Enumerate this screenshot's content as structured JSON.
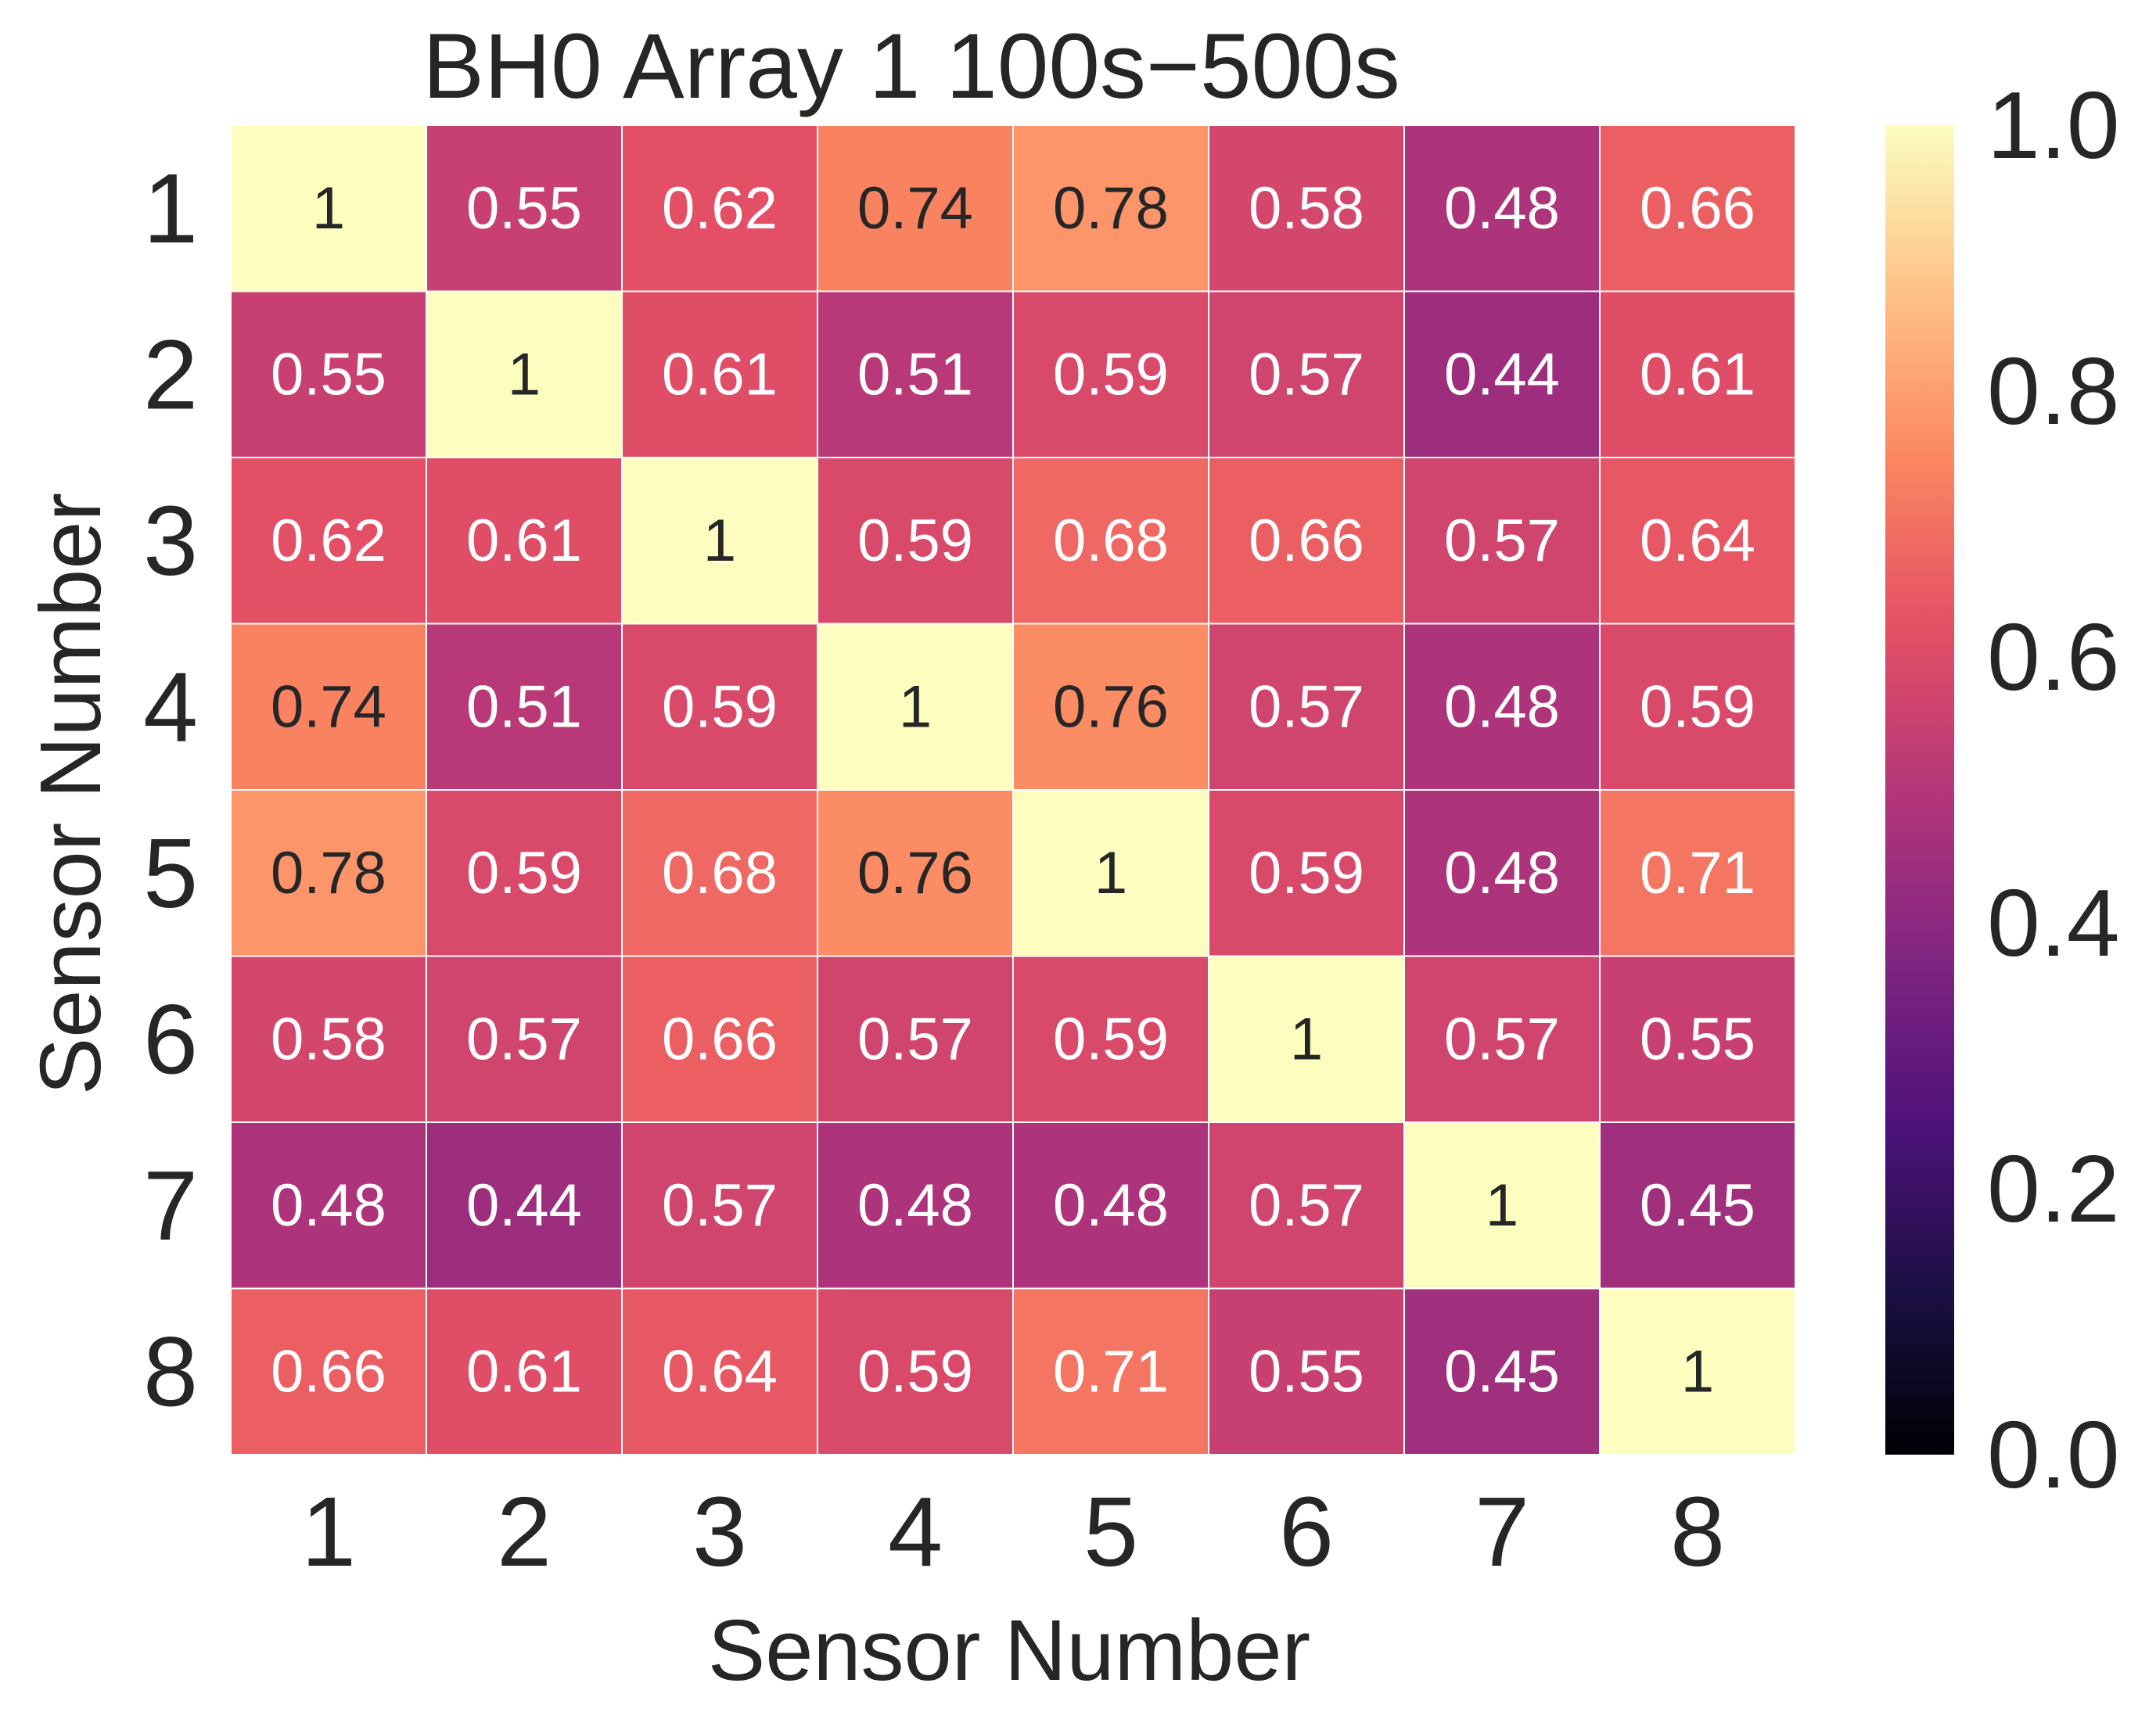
{
  "chart_data": {
    "type": "heatmap",
    "title": "BH0 Array 1 100s−500s",
    "xlabel": "Sensor Number",
    "ylabel": "Sensor Number",
    "x_categories": [
      "1",
      "2",
      "3",
      "4",
      "5",
      "6",
      "7",
      "8"
    ],
    "y_categories": [
      "1",
      "2",
      "3",
      "4",
      "5",
      "6",
      "7",
      "8"
    ],
    "values": [
      [
        1.0,
        0.55,
        0.62,
        0.74,
        0.78,
        0.58,
        0.48,
        0.66
      ],
      [
        0.55,
        1.0,
        0.61,
        0.51,
        0.59,
        0.57,
        0.44,
        0.61
      ],
      [
        0.62,
        0.61,
        1.0,
        0.59,
        0.68,
        0.66,
        0.57,
        0.64
      ],
      [
        0.74,
        0.51,
        0.59,
        1.0,
        0.76,
        0.57,
        0.48,
        0.59
      ],
      [
        0.78,
        0.59,
        0.68,
        0.76,
        1.0,
        0.59,
        0.48,
        0.71
      ],
      [
        0.58,
        0.57,
        0.66,
        0.57,
        0.59,
        1.0,
        0.57,
        0.55
      ],
      [
        0.48,
        0.44,
        0.57,
        0.48,
        0.48,
        0.57,
        1.0,
        0.45
      ],
      [
        0.66,
        0.61,
        0.64,
        0.59,
        0.71,
        0.55,
        0.45,
        1.0
      ]
    ],
    "cell_labels": [
      [
        "1",
        "0.55",
        "0.62",
        "0.74",
        "0.78",
        "0.58",
        "0.48",
        "0.66"
      ],
      [
        "0.55",
        "1",
        "0.61",
        "0.51",
        "0.59",
        "0.57",
        "0.44",
        "0.61"
      ],
      [
        "0.62",
        "0.61",
        "1",
        "0.59",
        "0.68",
        "0.66",
        "0.57",
        "0.64"
      ],
      [
        "0.74",
        "0.51",
        "0.59",
        "1",
        "0.76",
        "0.57",
        "0.48",
        "0.59"
      ],
      [
        "0.78",
        "0.59",
        "0.68",
        "0.76",
        "1",
        "0.59",
        "0.48",
        "0.71"
      ],
      [
        "0.58",
        "0.57",
        "0.66",
        "0.57",
        "0.59",
        "1",
        "0.57",
        "0.55"
      ],
      [
        "0.48",
        "0.44",
        "0.57",
        "0.48",
        "0.48",
        "0.57",
        "1",
        "0.45"
      ],
      [
        "0.66",
        "0.61",
        "0.64",
        "0.59",
        "0.71",
        "0.55",
        "0.45",
        "1"
      ]
    ],
    "colormap": "magma",
    "vmin": 0.0,
    "vmax": 1.0,
    "colorbar_ticks": [
      "0.0",
      "0.2",
      "0.4",
      "0.6",
      "0.8",
      "1.0"
    ],
    "legend_placement": "right",
    "grid": false
  }
}
